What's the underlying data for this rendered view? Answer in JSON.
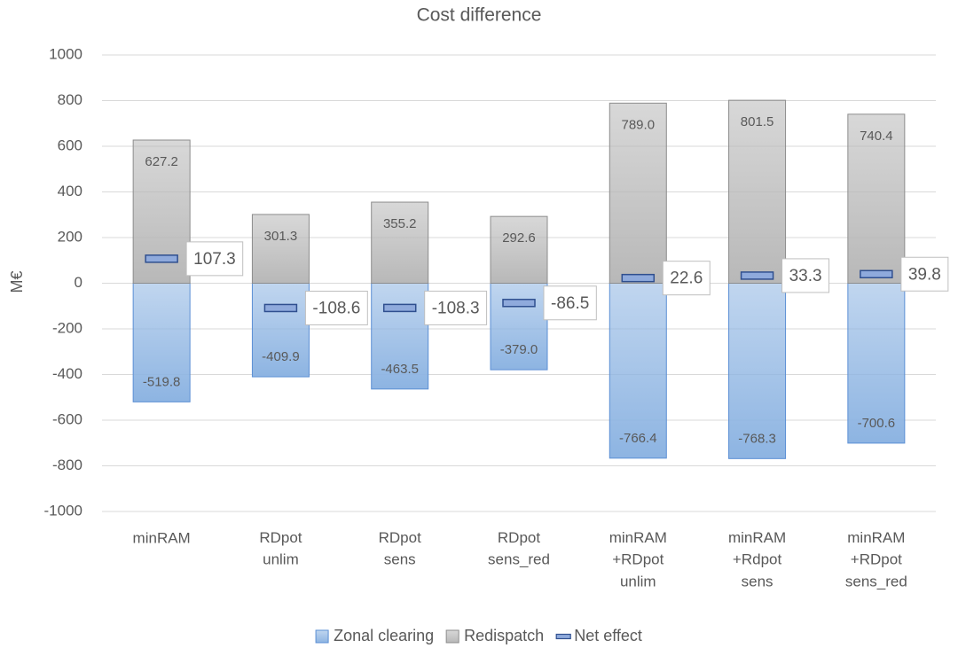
{
  "chart_data": {
    "type": "bar",
    "title": "Cost difference",
    "ylabel": "M€",
    "categories": [
      "minRAM",
      "RDpot\nunlim",
      "RDpot\nsens",
      "RDpot\nsens_red",
      "minRAM\n+RDpot\nunlim",
      "minRAM\n+Rdpot\nsens",
      "minRAM\n+RDpot\nsens_red"
    ],
    "series": [
      {
        "name": "Zonal clearing",
        "type": "bar",
        "color": "#8db4e2",
        "border": "#5b8fd4",
        "values": [
          -519.8,
          -409.9,
          -463.5,
          -379.0,
          -766.4,
          -768.3,
          -700.6
        ],
        "value_labels": [
          "-519.8",
          "-409.9",
          "-463.5",
          "-379.0",
          "-766.4",
          "-768.3",
          "-700.6"
        ]
      },
      {
        "name": "Redispatch",
        "type": "bar",
        "color": "#b8b8b8",
        "border": "#8c8c8c",
        "values": [
          627.2,
          301.3,
          355.2,
          292.6,
          789.0,
          801.5,
          740.4
        ],
        "value_labels": [
          "627.2",
          "301.3",
          "355.2",
          "292.6",
          "789.0",
          "801.5",
          "740.4"
        ]
      },
      {
        "name": "Net effect",
        "type": "marker",
        "color": "#8faadc",
        "border": "#2f4f8f",
        "values": [
          107.3,
          -108.6,
          -108.3,
          -86.5,
          22.6,
          33.3,
          39.8
        ]
      }
    ],
    "ylim": [
      -1000,
      1000
    ],
    "yticks": [
      -1000,
      -800,
      -600,
      -400,
      -200,
      0,
      200,
      400,
      600,
      800,
      1000
    ],
    "grid": true,
    "legend": "bottom"
  }
}
